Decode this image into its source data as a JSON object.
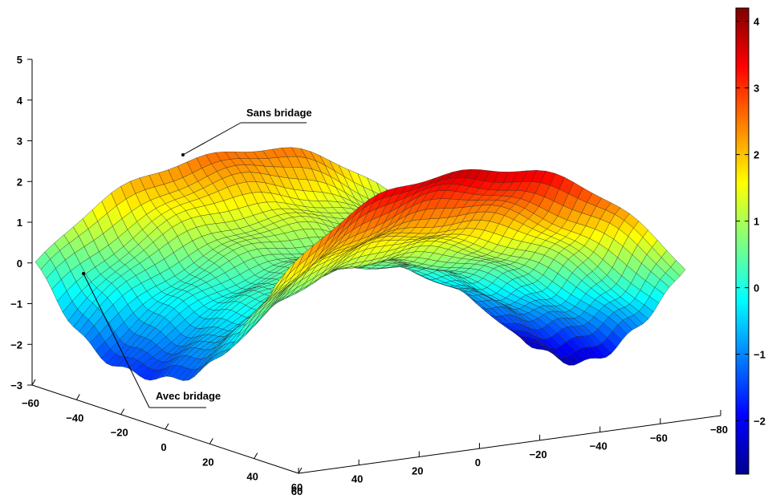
{
  "chart_data": {
    "type": "surface",
    "title": "",
    "x_axis": {
      "label": "",
      "range": [
        -80,
        60
      ],
      "ticks": [
        "60",
        "40",
        "20",
        "0",
        "−20",
        "−40",
        "−60",
        "−80"
      ]
    },
    "y_axis": {
      "label": "",
      "range": [
        -60,
        60
      ],
      "ticks": [
        "−60",
        "−40",
        "−20",
        "0",
        "20",
        "40",
        "60"
      ]
    },
    "z_axis": {
      "label": "",
      "range": [
        -3,
        5
      ],
      "ticks": [
        "5",
        "4",
        "3",
        "2",
        "1",
        "0",
        "−1",
        "−2",
        "−3"
      ]
    },
    "surface_shape": "saddle",
    "colormap": "jet",
    "colorbar": {
      "range": [
        -2.8,
        4.2
      ],
      "ticks": [
        "4",
        "3",
        "2",
        "1",
        "0",
        "−1",
        "−2"
      ]
    },
    "annotations": [
      {
        "text": "Sans bridage",
        "points_to": "saddle ridge, upper surface"
      },
      {
        "text": "Avec bridage",
        "points_to": "left edge of surface"
      }
    ],
    "grid": false,
    "mesh_lines": true
  }
}
